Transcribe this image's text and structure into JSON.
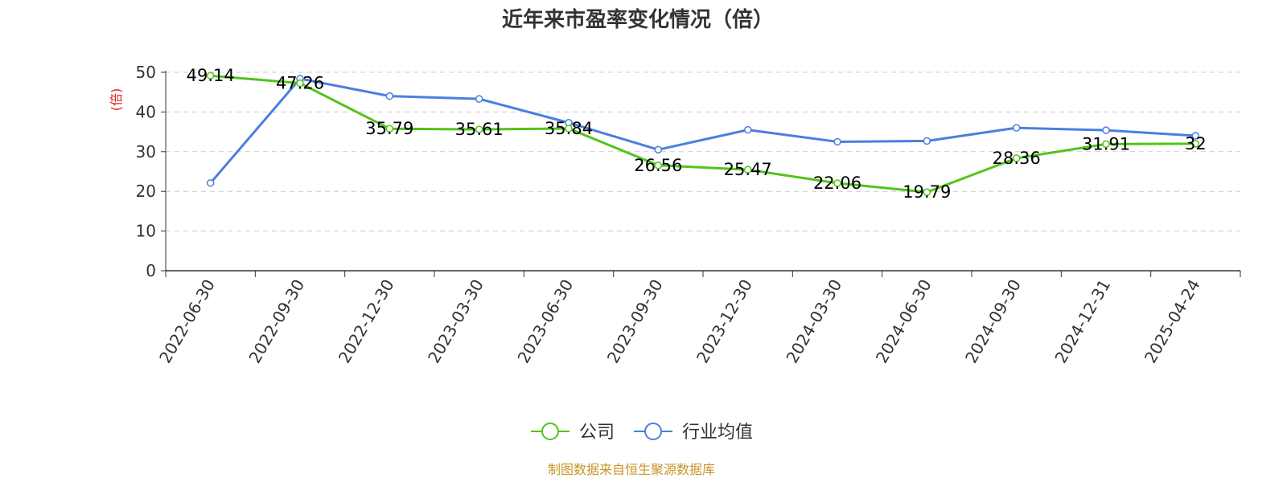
{
  "chart_data": {
    "type": "line",
    "title": "近年来市盈率变化情况（倍）",
    "ylabel": "(倍)",
    "xlabel": "",
    "categories": [
      "2022-06-30",
      "2022-09-30",
      "2022-12-30",
      "2023-03-30",
      "2023-06-30",
      "2023-09-30",
      "2023-12-30",
      "2024-03-30",
      "2024-06-30",
      "2024-09-30",
      "2024-12-31",
      "2025-04-24"
    ],
    "ylim": [
      0,
      50
    ],
    "yticks": [
      0,
      10,
      20,
      30,
      40,
      50
    ],
    "grid": true,
    "legend_position": "bottom",
    "series": [
      {
        "name": "公司",
        "color": "#52c41a",
        "values": [
          49.14,
          47.26,
          35.79,
          35.61,
          35.84,
          26.56,
          25.47,
          22.06,
          19.79,
          28.36,
          31.91,
          32
        ],
        "labels": [
          "49.14",
          "47.26",
          "35.79",
          "35.61",
          "35.84",
          "26.56",
          "25.47",
          "22.06",
          "19.79",
          "28.36",
          "31.91",
          "32"
        ]
      },
      {
        "name": "行业均值",
        "color": "#4a7fe0",
        "values": [
          22.1,
          48.4,
          44.0,
          43.3,
          37.3,
          30.5,
          35.5,
          32.5,
          32.7,
          36.0,
          35.4,
          34.0
        ]
      }
    ],
    "source": "制图数据来自恒生聚源数据库"
  },
  "colors": {
    "axis": "#333333",
    "grid": "#cccccc",
    "ylabel": "#e02020",
    "source": "#c8952a"
  }
}
